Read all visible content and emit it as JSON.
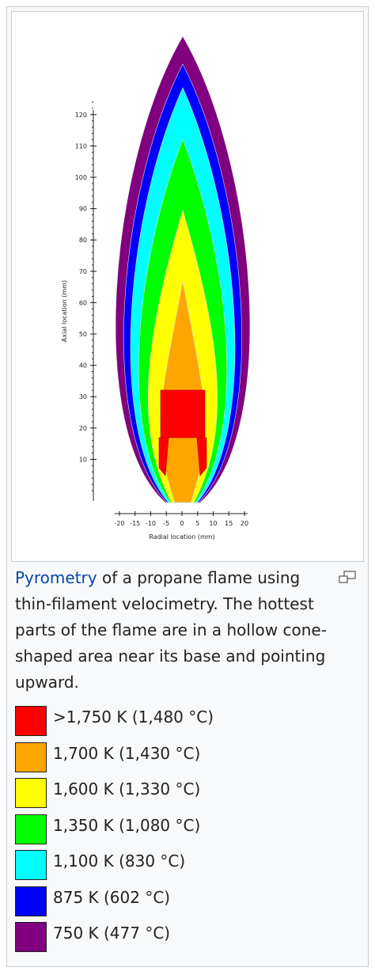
{
  "figure": {
    "plot": {
      "y_label": "Axial location (mm)",
      "y_ticks": [
        10,
        20,
        30,
        40,
        50,
        60,
        70,
        80,
        90,
        100,
        110,
        120
      ],
      "x_label": "Radial location (mm)",
      "x_ticks": [
        -20,
        -15,
        -10,
        -5,
        0,
        5,
        10,
        15,
        20
      ]
    },
    "caption": {
      "link": "Pyrometry",
      "text": "of a propane flame using thin-filament velocimetry. The hottest parts of the flame are in a hollow cone-shaped area near its base and pointing upward."
    },
    "legend": [
      {
        "color": "#ff0000",
        "label": ">1,750 K (1,480 °C)"
      },
      {
        "color": "#ffa500",
        "label": "1,700 K (1,430 °C)"
      },
      {
        "color": "#ffff00",
        "label": "1,600 K (1,330 °C)"
      },
      {
        "color": "#00ff00",
        "label": "1,350 K (1,080 °C)"
      },
      {
        "color": "#00ffff",
        "label": "1,100 K (830 °C)"
      },
      {
        "color": "#0000ff",
        "label": "875 K (602 °C)"
      },
      {
        "color": "#800080",
        "label": "750 K (477 °C)"
      }
    ]
  }
}
